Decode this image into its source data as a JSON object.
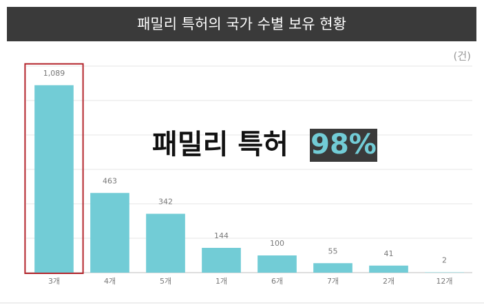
{
  "chart_data": {
    "type": "bar",
    "title": "패밀리 특허의 국가 수별 보유 현황",
    "unit": "(건)",
    "annotation": {
      "text": "패밀리 특허",
      "highlight": "98%"
    },
    "categories": [
      "3개",
      "4개",
      "5개",
      "1개",
      "6개",
      "7개",
      "2개",
      "12개"
    ],
    "values": [
      1089,
      463,
      342,
      144,
      100,
      55,
      41,
      2
    ],
    "value_labels": [
      "1,089",
      "463",
      "342",
      "144",
      "100",
      "55",
      "41",
      "2"
    ],
    "color": "#72ccd6",
    "highlight_index": 0,
    "highlight_color": "#b3232a",
    "ylim": [
      0,
      1200
    ],
    "yticks": [
      0,
      200,
      400,
      600,
      800,
      1000,
      1200
    ],
    "grid": true,
    "tick_labels": false
  }
}
